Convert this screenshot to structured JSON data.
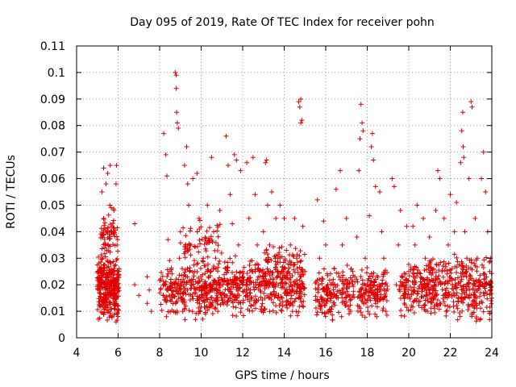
{
  "chart_data": {
    "type": "scatter",
    "title": "Day 095 of 2019, Rate Of TEC Index for receiver pohn",
    "xlabel": "GPS time / hours",
    "ylabel": "ROTI / TECUs",
    "xlim": [
      4,
      24
    ],
    "ylim": [
      0,
      0.11
    ],
    "xticks": [
      "4",
      "6",
      "8",
      "10",
      "12",
      "14",
      "16",
      "18",
      "20",
      "22",
      "24"
    ],
    "yticks": [
      "0",
      "0.01",
      "0.02",
      "0.03",
      "0.04",
      "0.05",
      "0.06",
      "0.07",
      "0.08",
      "0.09",
      "0.1",
      "0.11"
    ],
    "grid": true,
    "marker": "+",
    "color": "#e00000",
    "series": [
      {
        "name": "ROTI",
        "points": [
          [
            5.1,
            0.012
          ],
          [
            5.15,
            0.018
          ],
          [
            5.2,
            0.025
          ],
          [
            5.22,
            0.055
          ],
          [
            5.25,
            0.03
          ],
          [
            5.3,
            0.045
          ],
          [
            5.3,
            0.064
          ],
          [
            5.35,
            0.015
          ],
          [
            5.4,
            0.035
          ],
          [
            5.42,
            0.058
          ],
          [
            5.45,
            0.02
          ],
          [
            5.5,
            0.062
          ],
          [
            5.5,
            0.04
          ],
          [
            5.55,
            0.01
          ],
          [
            5.6,
            0.05
          ],
          [
            5.62,
            0.065
          ],
          [
            5.65,
            0.028
          ],
          [
            5.7,
            0.042
          ],
          [
            5.75,
            0.016
          ],
          [
            5.8,
            0.048
          ],
          [
            5.85,
            0.022
          ],
          [
            5.9,
            0.058
          ],
          [
            5.92,
            0.065
          ],
          [
            5.95,
            0.035
          ],
          [
            6.0,
            0.012
          ],
          [
            5.05,
            0.007
          ],
          [
            5.3,
            0.009
          ],
          [
            5.7,
            0.008
          ],
          [
            5.9,
            0.006
          ],
          [
            6.8,
            0.043
          ],
          [
            6.8,
            0.02
          ],
          [
            7.0,
            0.016
          ],
          [
            7.4,
            0.023
          ],
          [
            7.4,
            0.013
          ],
          [
            7.5,
            0.018
          ],
          [
            7.6,
            0.01
          ],
          [
            8.2,
            0.077
          ],
          [
            8.3,
            0.069
          ],
          [
            8.35,
            0.061
          ],
          [
            8.4,
            0.037
          ],
          [
            8.5,
            0.025
          ],
          [
            8.6,
            0.015
          ],
          [
            8.75,
            0.1
          ],
          [
            8.8,
            0.099
          ],
          [
            8.8,
            0.094
          ],
          [
            8.82,
            0.085
          ],
          [
            8.85,
            0.081
          ],
          [
            8.9,
            0.079
          ],
          [
            8.95,
            0.03
          ],
          [
            9.0,
            0.04
          ],
          [
            9.05,
            0.02
          ],
          [
            9.2,
            0.065
          ],
          [
            9.3,
            0.072
          ],
          [
            9.35,
            0.058
          ],
          [
            9.4,
            0.05
          ],
          [
            9.5,
            0.035
          ],
          [
            9.6,
            0.06
          ],
          [
            9.7,
            0.025
          ],
          [
            9.8,
            0.062
          ],
          [
            9.9,
            0.045
          ],
          [
            10.0,
            0.015
          ],
          [
            10.1,
            0.03
          ],
          [
            10.3,
            0.05
          ],
          [
            10.4,
            0.02
          ],
          [
            10.5,
            0.068
          ],
          [
            10.6,
            0.04
          ],
          [
            10.7,
            0.03
          ],
          [
            10.8,
            0.01
          ],
          [
            10.9,
            0.048
          ],
          [
            11.0,
            0.022
          ],
          [
            11.2,
            0.076
          ],
          [
            11.3,
            0.065
          ],
          [
            11.4,
            0.054
          ],
          [
            11.5,
            0.043
          ],
          [
            11.6,
            0.069
          ],
          [
            11.7,
            0.067
          ],
          [
            11.8,
            0.035
          ],
          [
            11.9,
            0.063
          ],
          [
            12.0,
            0.025
          ],
          [
            12.2,
            0.066
          ],
          [
            12.3,
            0.045
          ],
          [
            12.4,
            0.015
          ],
          [
            12.5,
            0.068
          ],
          [
            12.6,
            0.054
          ],
          [
            12.7,
            0.035
          ],
          [
            12.8,
            0.02
          ],
          [
            12.9,
            0.01
          ],
          [
            13.0,
            0.04
          ],
          [
            13.1,
            0.066
          ],
          [
            13.15,
            0.067
          ],
          [
            13.2,
            0.05
          ],
          [
            13.3,
            0.035
          ],
          [
            13.4,
            0.055
          ],
          [
            13.5,
            0.02
          ],
          [
            13.6,
            0.045
          ],
          [
            13.7,
            0.03
          ],
          [
            13.8,
            0.05
          ],
          [
            13.9,
            0.015
          ],
          [
            14.0,
            0.045
          ],
          [
            14.2,
            0.025
          ],
          [
            14.3,
            0.035
          ],
          [
            14.4,
            0.01
          ],
          [
            14.5,
            0.045
          ],
          [
            14.6,
            0.03
          ],
          [
            14.7,
            0.089
          ],
          [
            14.75,
            0.087
          ],
          [
            14.8,
            0.09
          ],
          [
            14.8,
            0.081
          ],
          [
            14.85,
            0.082
          ],
          [
            14.9,
            0.042
          ],
          [
            15.0,
            0.025
          ],
          [
            15.6,
            0.052
          ],
          [
            15.7,
            0.03
          ],
          [
            15.8,
            0.015
          ],
          [
            15.9,
            0.044
          ],
          [
            16.0,
            0.035
          ],
          [
            16.1,
            0.02
          ],
          [
            16.2,
            0.01
          ],
          [
            16.4,
            0.026
          ],
          [
            16.5,
            0.056
          ],
          [
            16.6,
            0.015
          ],
          [
            16.7,
            0.063
          ],
          [
            16.8,
            0.035
          ],
          [
            16.9,
            0.02
          ],
          [
            17.0,
            0.045
          ],
          [
            17.2,
            0.01
          ],
          [
            17.3,
            0.025
          ],
          [
            17.5,
            0.038
          ],
          [
            17.6,
            0.063
          ],
          [
            17.65,
            0.075
          ],
          [
            17.7,
            0.088
          ],
          [
            17.75,
            0.081
          ],
          [
            17.8,
            0.078
          ],
          [
            17.9,
            0.03
          ],
          [
            18.0,
            0.02
          ],
          [
            18.1,
            0.046
          ],
          [
            18.2,
            0.072
          ],
          [
            18.25,
            0.077
          ],
          [
            18.3,
            0.067
          ],
          [
            18.4,
            0.057
          ],
          [
            18.5,
            0.015
          ],
          [
            18.6,
            0.055
          ],
          [
            18.7,
            0.04
          ],
          [
            18.8,
            0.03
          ],
          [
            18.9,
            0.01
          ],
          [
            19.2,
            0.06
          ],
          [
            19.3,
            0.057
          ],
          [
            19.4,
            0.02
          ],
          [
            19.5,
            0.035
          ],
          [
            19.6,
            0.048
          ],
          [
            19.8,
            0.015
          ],
          [
            19.9,
            0.042
          ],
          [
            20.0,
            0.025
          ],
          [
            20.2,
            0.042
          ],
          [
            20.3,
            0.035
          ],
          [
            20.4,
            0.05
          ],
          [
            20.6,
            0.02
          ],
          [
            20.7,
            0.045
          ],
          [
            20.8,
            0.03
          ],
          [
            20.9,
            0.01
          ],
          [
            21.0,
            0.038
          ],
          [
            21.3,
            0.048
          ],
          [
            21.4,
            0.063
          ],
          [
            21.5,
            0.06
          ],
          [
            21.6,
            0.025
          ],
          [
            21.7,
            0.045
          ],
          [
            21.8,
            0.01
          ],
          [
            21.9,
            0.035
          ],
          [
            22.0,
            0.054
          ],
          [
            22.1,
            0.02
          ],
          [
            22.2,
            0.04
          ],
          [
            22.3,
            0.051
          ],
          [
            22.4,
            0.015
          ],
          [
            22.5,
            0.066
          ],
          [
            22.55,
            0.078
          ],
          [
            22.6,
            0.085
          ],
          [
            22.62,
            0.072
          ],
          [
            22.65,
            0.068
          ],
          [
            22.7,
            0.04
          ],
          [
            22.8,
            0.03
          ],
          [
            22.9,
            0.06
          ],
          [
            23.0,
            0.089
          ],
          [
            23.05,
            0.087
          ],
          [
            23.1,
            0.02
          ],
          [
            23.2,
            0.045
          ],
          [
            23.3,
            0.03
          ],
          [
            23.4,
            0.013
          ],
          [
            23.5,
            0.06
          ],
          [
            23.6,
            0.07
          ],
          [
            23.7,
            0.055
          ],
          [
            23.8,
            0.04
          ],
          [
            23.9,
            0.025
          ],
          [
            24.0,
            0.015
          ]
        ]
      }
    ],
    "bands": [
      {
        "x0": 5.0,
        "x1": 6.05,
        "y0": 0.006,
        "y1": 0.032,
        "n": 320
      },
      {
        "x0": 5.1,
        "x1": 6.0,
        "y0": 0.03,
        "y1": 0.05,
        "n": 60
      },
      {
        "x0": 8.0,
        "x1": 11.0,
        "y0": 0.006,
        "y1": 0.03,
        "n": 340
      },
      {
        "x0": 9.0,
        "x1": 11.0,
        "y0": 0.028,
        "y1": 0.045,
        "n": 60
      },
      {
        "x0": 11.0,
        "x1": 13.0,
        "y0": 0.007,
        "y1": 0.032,
        "n": 220
      },
      {
        "x0": 13.0,
        "x1": 15.0,
        "y0": 0.006,
        "y1": 0.035,
        "n": 280
      },
      {
        "x0": 15.5,
        "x1": 19.0,
        "y0": 0.006,
        "y1": 0.028,
        "n": 320
      },
      {
        "x0": 19.5,
        "x1": 21.2,
        "y0": 0.007,
        "y1": 0.03,
        "n": 160
      },
      {
        "x0": 21.0,
        "x1": 24.0,
        "y0": 0.006,
        "y1": 0.032,
        "n": 320
      }
    ]
  }
}
